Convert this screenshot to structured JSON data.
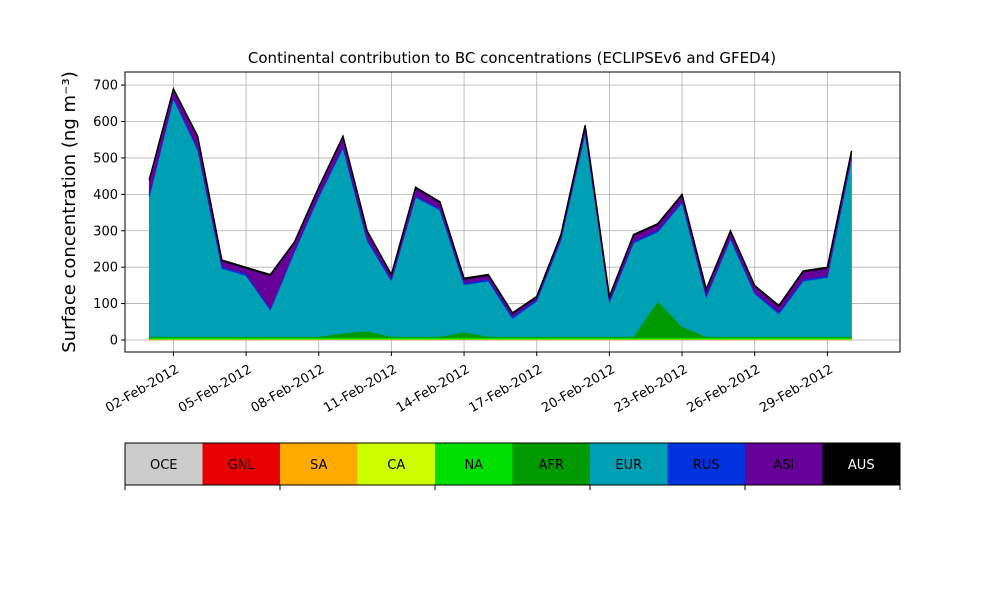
{
  "chart_data": {
    "type": "stacked_area",
    "title": "Continental contribution to BC concentrations (ECLIPSEv6 and GFED4)",
    "ylabel": "Surface concentration (ng m⁻³)",
    "x": [
      "01-Feb-2012",
      "02-Feb-2012",
      "03-Feb-2012",
      "04-Feb-2012",
      "05-Feb-2012",
      "06-Feb-2012",
      "07-Feb-2012",
      "08-Feb-2012",
      "09-Feb-2012",
      "10-Feb-2012",
      "11-Feb-2012",
      "12-Feb-2012",
      "13-Feb-2012",
      "14-Feb-2012",
      "15-Feb-2012",
      "16-Feb-2012",
      "17-Feb-2012",
      "18-Feb-2012",
      "19-Feb-2012",
      "20-Feb-2012",
      "21-Feb-2012",
      "22-Feb-2012",
      "23-Feb-2012",
      "24-Feb-2012",
      "25-Feb-2012",
      "26-Feb-2012",
      "27-Feb-2012",
      "28-Feb-2012",
      "29-Feb-2012",
      "01-Mar-2012"
    ],
    "xlim": [
      "31-Jan-2012",
      "03-Mar-2012"
    ],
    "xticks": [
      "02-Feb-2012",
      "05-Feb-2012",
      "08-Feb-2012",
      "11-Feb-2012",
      "14-Feb-2012",
      "17-Feb-2012",
      "20-Feb-2012",
      "23-Feb-2012",
      "26-Feb-2012",
      "29-Feb-2012"
    ],
    "ylim": [
      -33,
      736
    ],
    "yticks": [
      0,
      100,
      200,
      300,
      400,
      500,
      600,
      700
    ],
    "grid": true,
    "series": [
      {
        "name": "OCE",
        "color": "#cccccc",
        "values": [
          0.5,
          0.5,
          0.5,
          0.5,
          0.5,
          0.5,
          0.5,
          0.5,
          0.5,
          0.5,
          0.5,
          0.5,
          0.5,
          0.5,
          0.5,
          0.5,
          0.5,
          0.5,
          0.5,
          0.5,
          0.5,
          0.5,
          0.5,
          0.5,
          0.5,
          0.5,
          0.5,
          0.5,
          0.5,
          0.5
        ]
      },
      {
        "name": "GNL",
        "color": "#e60000",
        "values": [
          0.5,
          0.5,
          0.5,
          0.5,
          0.5,
          0.5,
          0.5,
          0.5,
          0.5,
          0.5,
          0.5,
          0.5,
          0.5,
          0.5,
          0.5,
          0.5,
          0.5,
          0.5,
          0.5,
          0.5,
          0.5,
          0.5,
          0.5,
          0.5,
          0.5,
          0.5,
          0.5,
          0.5,
          0.5,
          0.5
        ]
      },
      {
        "name": "SA",
        "color": "#ffaa00",
        "values": [
          0.5,
          0.5,
          0.5,
          0.5,
          0.5,
          0.5,
          0.5,
          0.5,
          0.5,
          0.5,
          0.5,
          0.5,
          0.5,
          0.5,
          0.5,
          0.5,
          0.5,
          0.5,
          0.5,
          0.5,
          0.5,
          0.5,
          0.5,
          0.5,
          0.5,
          0.5,
          0.5,
          0.5,
          0.5,
          0.5
        ]
      },
      {
        "name": "CA",
        "color": "#ccff00",
        "values": [
          1,
          1,
          1,
          1,
          1,
          1,
          1,
          1,
          1,
          1,
          1,
          1,
          1,
          1,
          1,
          1,
          1,
          1,
          1,
          1,
          1,
          1,
          1,
          1,
          1,
          1,
          1,
          1,
          1,
          1
        ]
      },
      {
        "name": "NA",
        "color": "#00e000",
        "values": [
          4,
          4,
          4,
          4,
          4,
          4,
          4,
          4,
          4,
          4,
          4,
          4,
          4,
          4,
          4,
          4,
          4,
          4,
          4,
          4,
          4,
          4,
          4,
          4,
          4,
          4,
          4,
          4,
          4,
          4
        ]
      },
      {
        "name": "AFR",
        "color": "#009900",
        "values": [
          3,
          3,
          3,
          3,
          3,
          3,
          3,
          3,
          12,
          18,
          3,
          3,
          3,
          15,
          3,
          3,
          3,
          3,
          3,
          3,
          3,
          100,
          30,
          3,
          3,
          3,
          3,
          3,
          3,
          3
        ]
      },
      {
        "name": "EUR",
        "color": "#00a0b4",
        "values": [
          382,
          652,
          512,
          187,
          167,
          72,
          232,
          382,
          508,
          247,
          152,
          382,
          347,
          130,
          152,
          49,
          97,
          264,
          557,
          92,
          257,
          190,
          340,
          107,
          267,
          117,
          62,
          152,
          162,
          487
        ]
      },
      {
        "name": "RUS",
        "color": "#0033dd",
        "values": [
          5,
          5,
          5,
          5,
          5,
          5,
          5,
          5,
          5,
          5,
          5,
          5,
          5,
          5,
          5,
          5,
          5,
          5,
          5,
          5,
          5,
          5,
          5,
          5,
          5,
          5,
          5,
          5,
          5,
          5
        ]
      },
      {
        "name": "ASI",
        "color": "#660099",
        "values": [
          40,
          20,
          30,
          15,
          15,
          90,
          20,
          20,
          25,
          20,
          10,
          20,
          15,
          10,
          10,
          8,
          5,
          8,
          15,
          10,
          15,
          15,
          15,
          15,
          15,
          15,
          15,
          20,
          20,
          15
        ]
      },
      {
        "name": "AUS",
        "color": "#000000",
        "values": [
          3,
          3,
          3,
          3,
          3,
          3,
          3,
          3,
          3,
          3,
          3,
          3,
          3,
          3,
          3,
          3,
          3,
          3,
          3,
          3,
          3,
          3,
          3,
          3,
          3,
          3,
          3,
          3,
          3,
          3
        ]
      }
    ]
  }
}
